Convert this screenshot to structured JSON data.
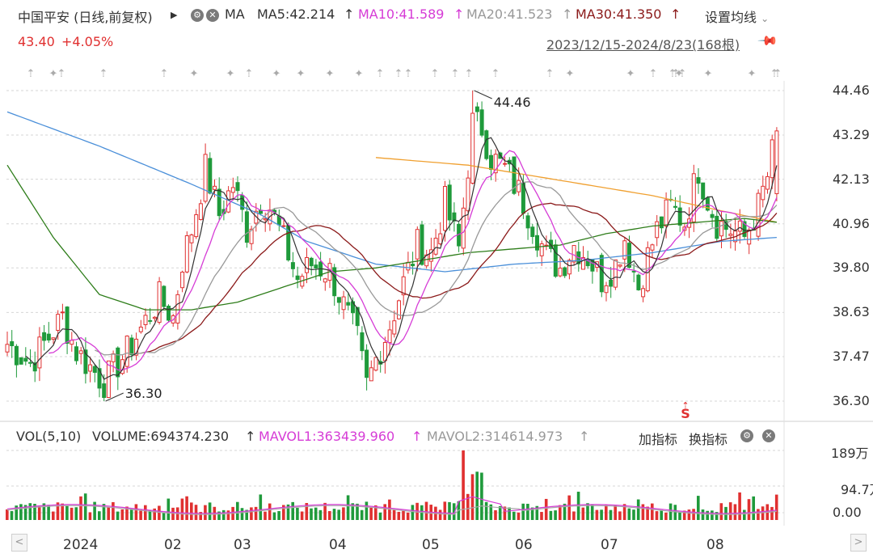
{
  "header": {
    "title": "中国平安 (日线,前复权)",
    "indicator": "MA",
    "ma": [
      {
        "label": "MA5:42.214",
        "color": "#333333"
      },
      {
        "label": "MA10:41.589",
        "color": "#d63cd6"
      },
      {
        "label": "MA20:41.523",
        "color": "#999999"
      },
      {
        "label": "MA30:41.350",
        "color": "#8b1a1a"
      }
    ],
    "settings_label": "设置均线",
    "price": "43.40",
    "change": "+4.05%",
    "range": "2023/12/15-2024/8/23(168根)"
  },
  "volume_header": {
    "vol": "VOL(5,10)",
    "volume": "VOLUME:694374.230",
    "mavol1": "MAVOL1:363439.960",
    "mavol2": "MAVOL2:314614.973",
    "add_label": "加指标",
    "switch_label": "换指标"
  },
  "colors": {
    "up": "#e03030",
    "down": "#1f9a3b",
    "ma5": "#333333",
    "ma10": "#d63cd6",
    "ma20": "#999999",
    "ma30": "#8b1a1a",
    "ma60": "#2e7d1a",
    "ma120": "#4a8fd9",
    "ma250": "#f0a030"
  },
  "chart_data": {
    "type": "candlestick",
    "price_axis": [
      "44.46",
      "43.29",
      "42.13",
      "40.96",
      "39.80",
      "38.63",
      "37.47",
      "36.30"
    ],
    "volume_axis": [
      "189万",
      "94.7万",
      "0.00"
    ],
    "x_labels": [
      "2024",
      "02",
      "03",
      "04",
      "05",
      "06",
      "07",
      "08"
    ],
    "annotations": {
      "high": "44.46",
      "low": "36.30",
      "s_marker": "S"
    },
    "anchors": [
      [
        0,
        37.8
      ],
      [
        5,
        37.3
      ],
      [
        12,
        38.5
      ],
      [
        15,
        37.6
      ],
      [
        21,
        36.8
      ],
      [
        26,
        37.6
      ],
      [
        30,
        38.4
      ],
      [
        33,
        39.0
      ],
      [
        36,
        38.5
      ],
      [
        38,
        40.0
      ],
      [
        40,
        40.8
      ],
      [
        43,
        42.4
      ],
      [
        46,
        41.2
      ],
      [
        49,
        42.0
      ],
      [
        52,
        40.8
      ],
      [
        55,
        41.6
      ],
      [
        57,
        41.4
      ],
      [
        60,
        40.5
      ],
      [
        63,
        39.5
      ],
      [
        66,
        39.9
      ],
      [
        70,
        39.7
      ],
      [
        73,
        38.8
      ],
      [
        76,
        37.9
      ],
      [
        78,
        36.7
      ],
      [
        80,
        37.4
      ],
      [
        83,
        38.3
      ],
      [
        86,
        39.4
      ],
      [
        89,
        40.4
      ],
      [
        92,
        40.2
      ],
      [
        95,
        41.5
      ],
      [
        98,
        40.3
      ],
      [
        101,
        43.6
      ],
      [
        103,
        43.5
      ],
      [
        105,
        42.7
      ],
      [
        108,
        42.4
      ],
      [
        111,
        41.8
      ],
      [
        114,
        41.0
      ],
      [
        117,
        40.1
      ],
      [
        120,
        39.8
      ],
      [
        123,
        40.4
      ],
      [
        126,
        40.1
      ],
      [
        129,
        39.5
      ],
      [
        132,
        39.9
      ],
      [
        134,
        40.6
      ],
      [
        137,
        39.3
      ],
      [
        139,
        40.1
      ],
      [
        141,
        40.8
      ],
      [
        144,
        41.4
      ],
      [
        147,
        41.0
      ],
      [
        150,
        42.4
      ],
      [
        152,
        41.6
      ],
      [
        154,
        41.0
      ],
      [
        157,
        40.8
      ],
      [
        160,
        40.6
      ],
      [
        163,
        41.4
      ],
      [
        165,
        42.2
      ],
      [
        167,
        43.4
      ]
    ],
    "ma60_anchors": [
      [
        0,
        42.5
      ],
      [
        10,
        40.6
      ],
      [
        20,
        39.1
      ],
      [
        30,
        38.7
      ],
      [
        40,
        38.7
      ],
      [
        50,
        38.9
      ],
      [
        60,
        39.3
      ],
      [
        70,
        39.7
      ],
      [
        80,
        39.8
      ],
      [
        90,
        40.0
      ],
      [
        100,
        40.2
      ],
      [
        110,
        40.3
      ],
      [
        120,
        40.4
      ],
      [
        130,
        40.7
      ],
      [
        140,
        40.9
      ],
      [
        150,
        41.0
      ],
      [
        160,
        41.1
      ],
      [
        167,
        41.0
      ]
    ],
    "ma120_anchors": [
      [
        0,
        43.9
      ],
      [
        20,
        43.0
      ],
      [
        40,
        42.0
      ],
      [
        55,
        41.2
      ],
      [
        65,
        40.5
      ],
      [
        80,
        39.9
      ],
      [
        95,
        39.7
      ],
      [
        110,
        39.9
      ],
      [
        125,
        40.0
      ],
      [
        140,
        40.2
      ],
      [
        155,
        40.5
      ],
      [
        167,
        40.6
      ]
    ],
    "ma250_anchors": [
      [
        80,
        42.7
      ],
      [
        100,
        42.5
      ],
      [
        120,
        42.1
      ],
      [
        140,
        41.7
      ],
      [
        155,
        41.3
      ],
      [
        167,
        41.0
      ]
    ]
  }
}
